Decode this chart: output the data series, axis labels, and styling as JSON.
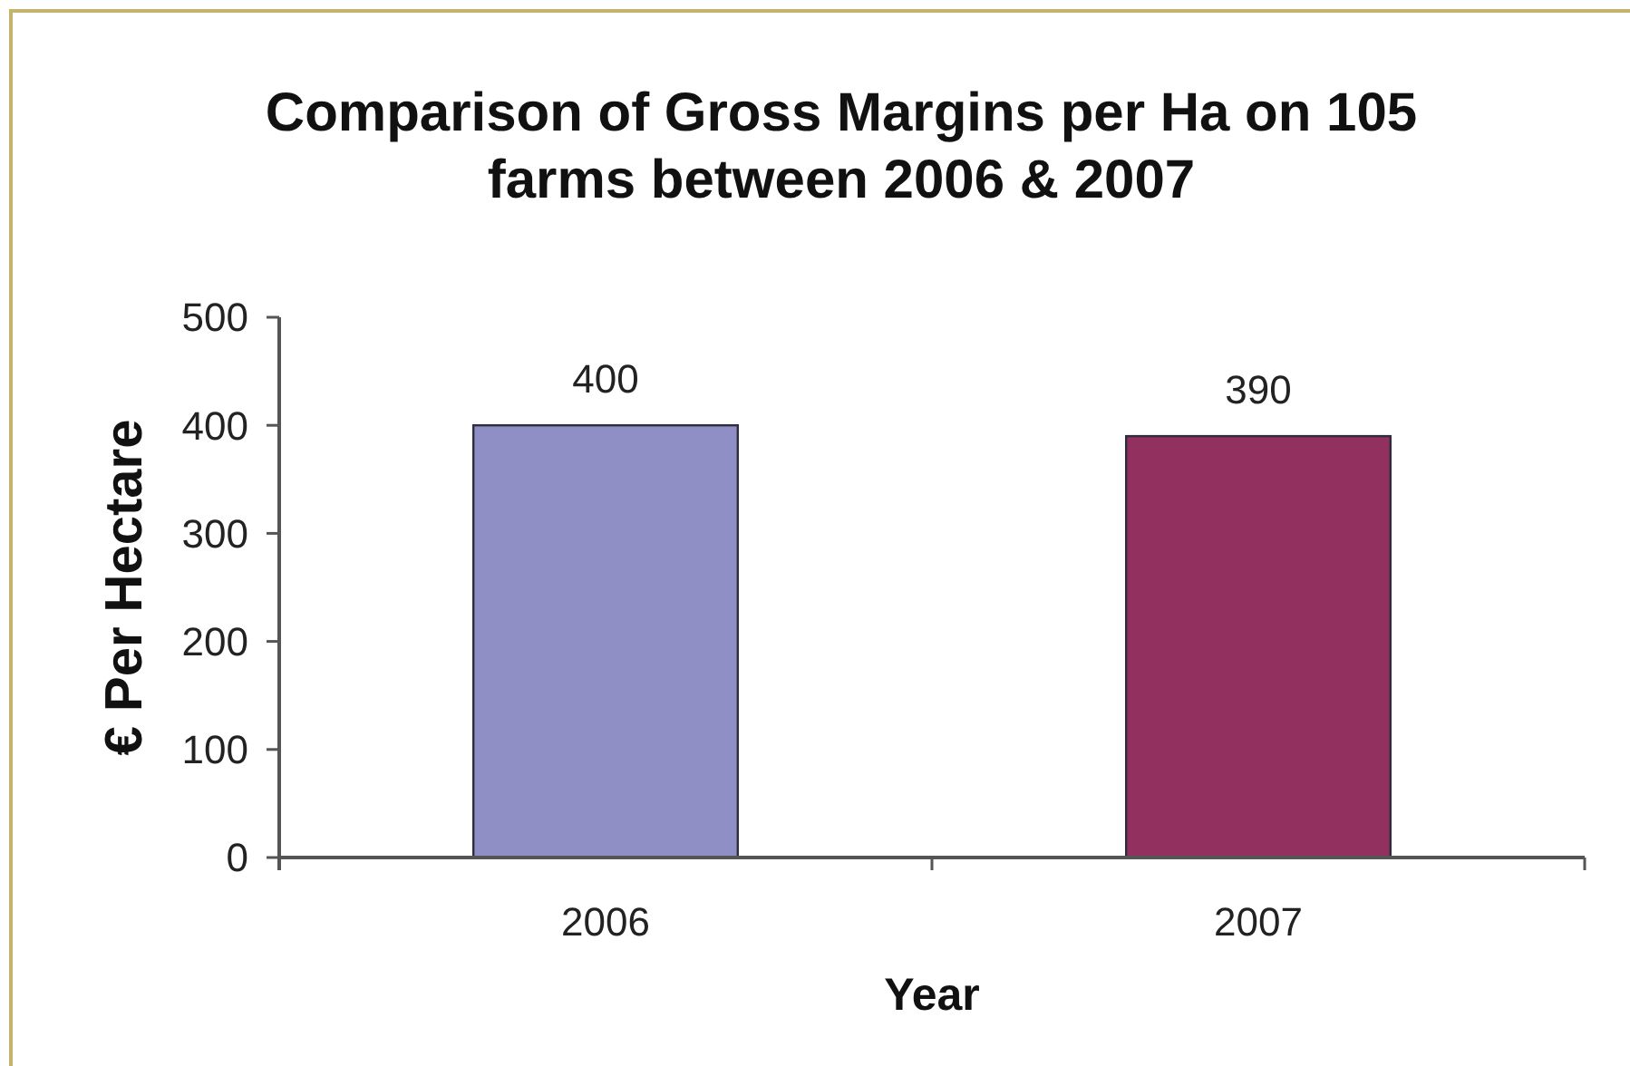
{
  "chart_data": {
    "type": "bar",
    "title": "Comparison of Gross Margins per Ha on 105 farms between 2006 & 2007",
    "xlabel": "Year",
    "ylabel": "€ Per Hectare",
    "categories": [
      "2006",
      "2007"
    ],
    "values": [
      400,
      390
    ],
    "colors": [
      "#8f8fc6",
      "#92305f"
    ],
    "ylim": [
      0,
      500
    ],
    "yticks": [
      0,
      100,
      200,
      300,
      400,
      500
    ],
    "data_labels": true
  }
}
